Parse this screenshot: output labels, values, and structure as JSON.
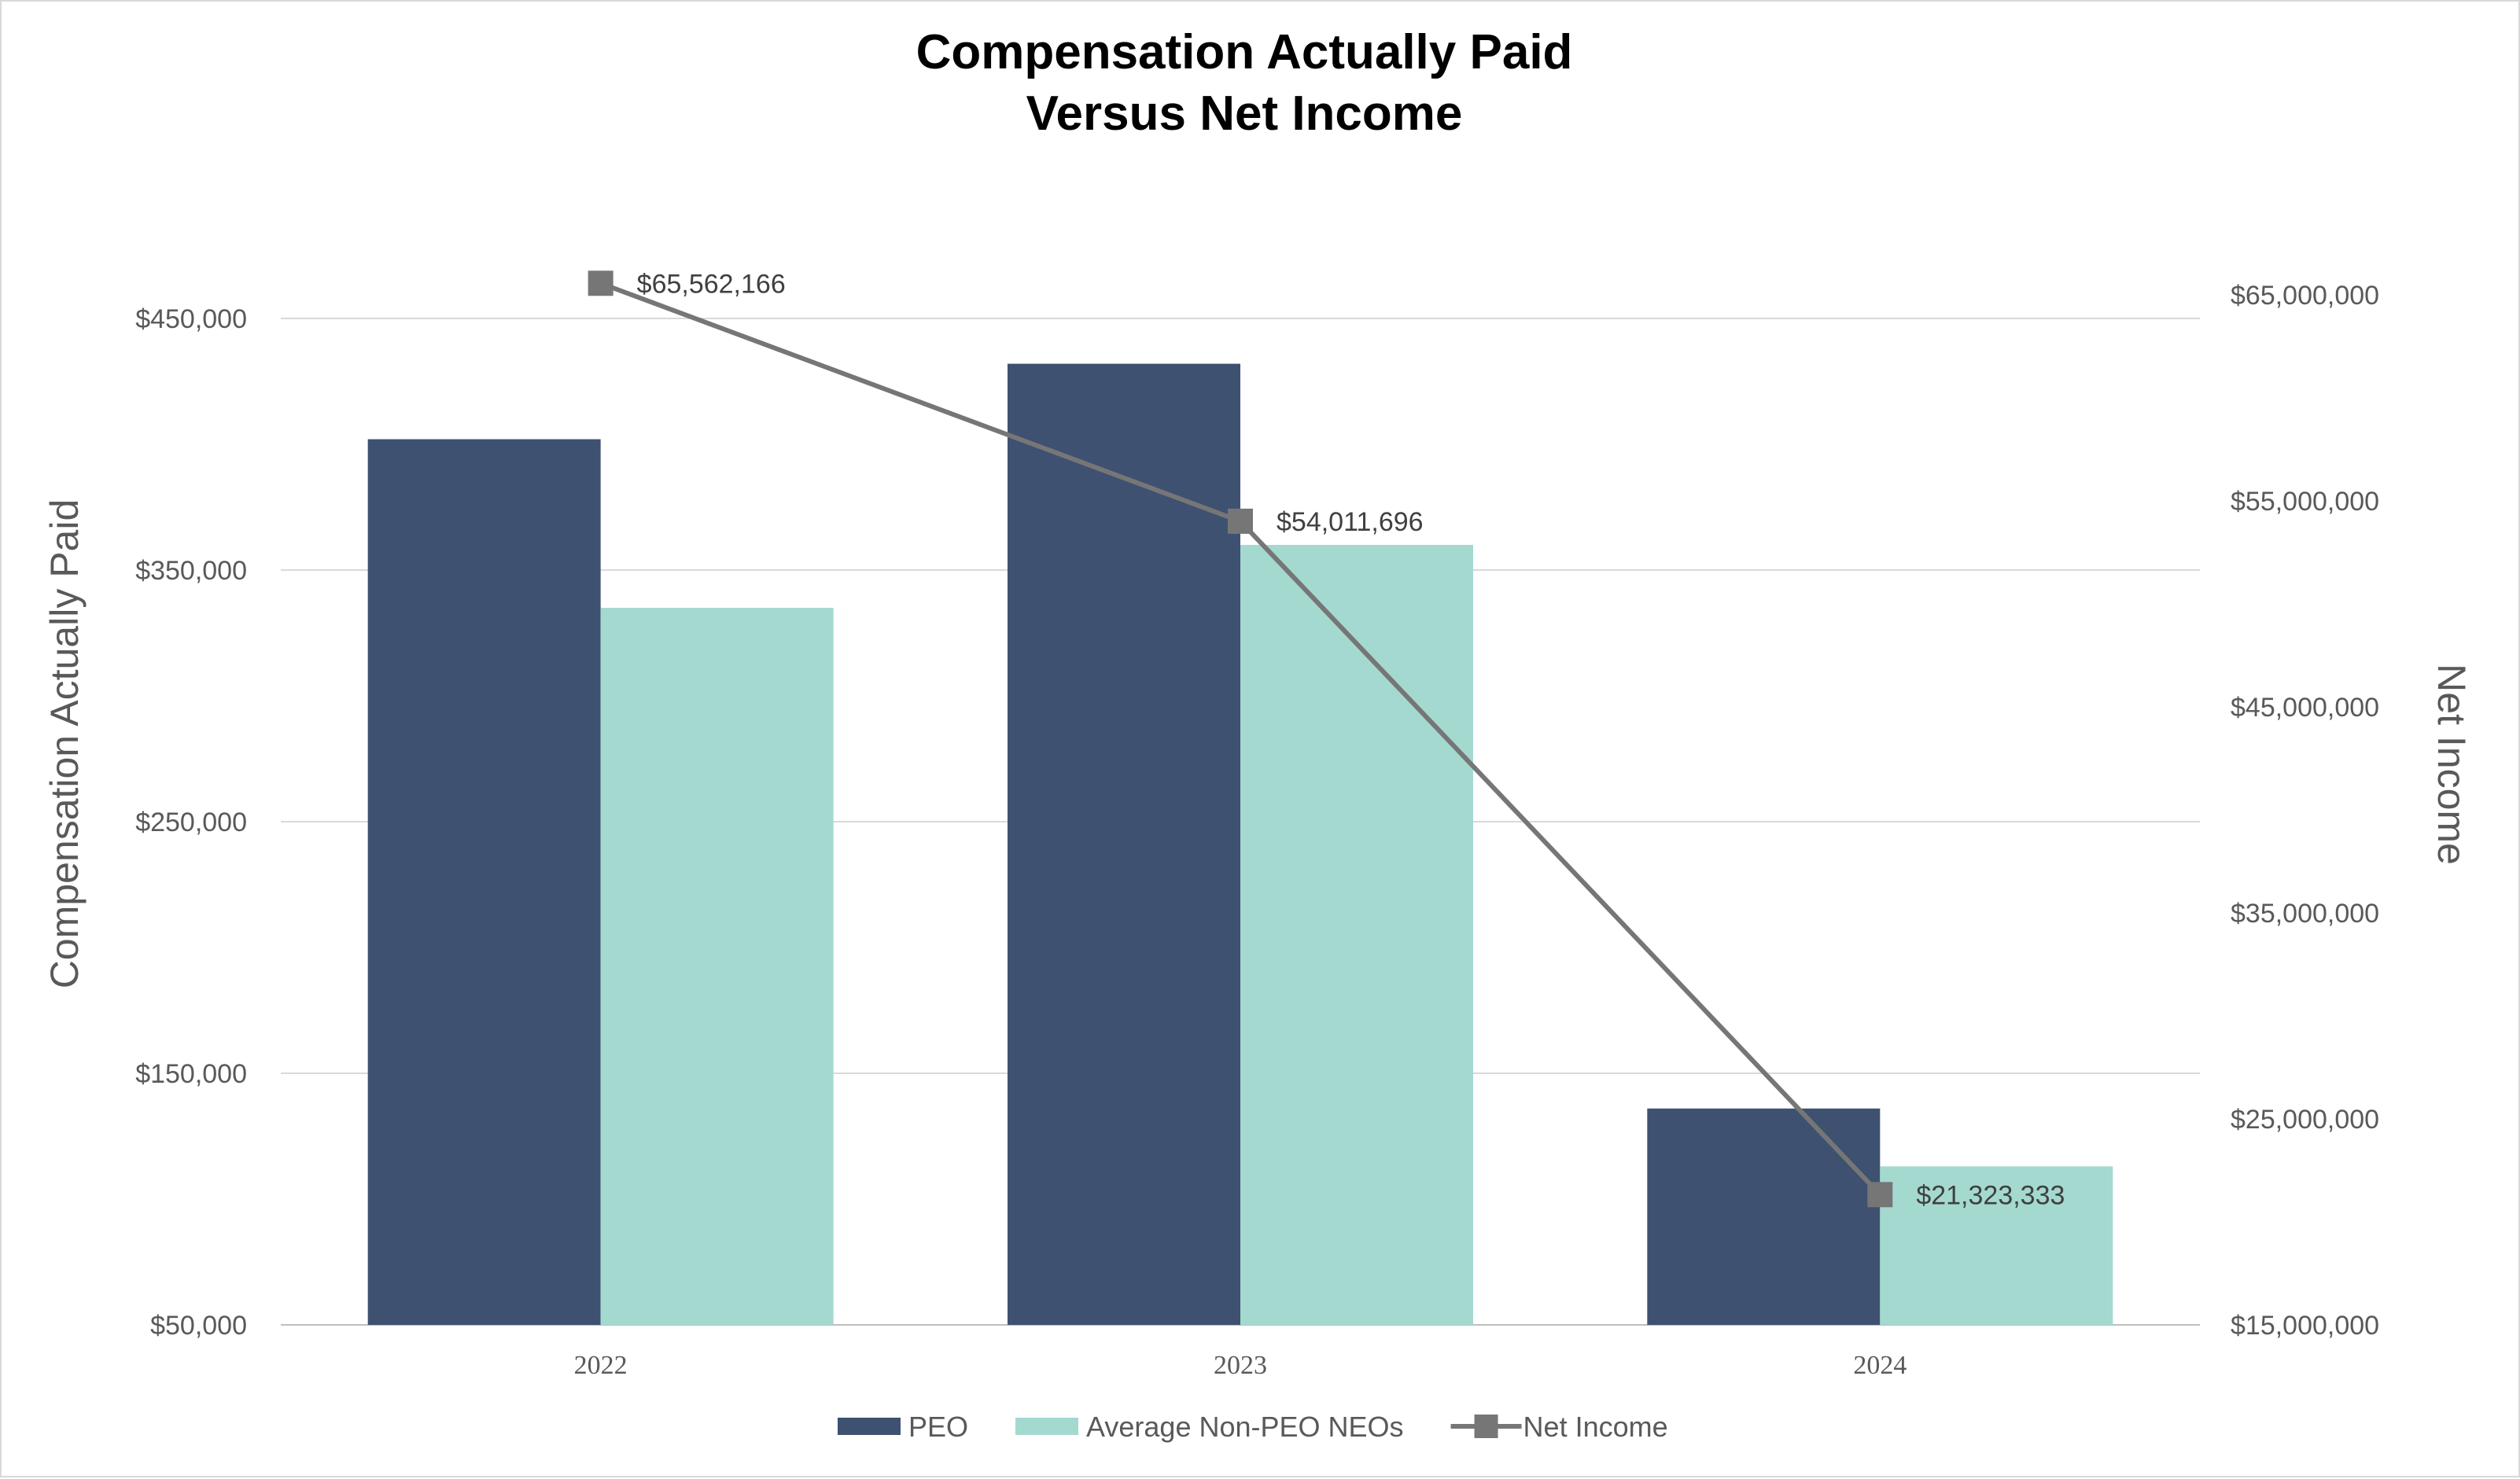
{
  "chart_data": {
    "type": "bar",
    "title": [
      "Compensation Actually Paid",
      "Versus Net Income"
    ],
    "categories": [
      "2022",
      "2023",
      "2024"
    ],
    "ylabel": "Compensation Actually Paid",
    "y2label": "Net Income",
    "ylim": [
      50000,
      450000
    ],
    "y_ticks": [
      {
        "value": 50000,
        "label": "$50,000"
      },
      {
        "value": 150000,
        "label": "$150,000"
      },
      {
        "value": 250000,
        "label": "$250,000"
      },
      {
        "value": 350000,
        "label": "$350,000"
      },
      {
        "value": 450000,
        "label": "$450,000"
      }
    ],
    "y2lim": [
      15000000,
      65000000
    ],
    "y2_ticks": [
      {
        "value": 15000000,
        "label": "$15,000,000"
      },
      {
        "value": 25000000,
        "label": "$25,000,000"
      },
      {
        "value": 35000000,
        "label": "$35,000,000"
      },
      {
        "value": 45000000,
        "label": "$45,000,000"
      },
      {
        "value": 55000000,
        "label": "$55,000,000"
      },
      {
        "value": 65000000,
        "label": "$65,000,000"
      }
    ],
    "grid": true,
    "legend_position": "bottom",
    "series": [
      {
        "name": "PEO",
        "type": "bar",
        "axis": "left",
        "color": "#3e5170",
        "values": [
          402000,
          432000,
          136000
        ]
      },
      {
        "name": "Average Non-PEO NEOs",
        "type": "bar",
        "axis": "left",
        "color": "#a4d9d0",
        "values": [
          335000,
          360000,
          113000
        ]
      },
      {
        "name": "Net Income",
        "type": "line",
        "axis": "right",
        "color": "#767676",
        "marker": "square",
        "values": [
          65562166,
          54011696,
          21323333
        ],
        "labels": [
          "$65,562,166",
          "$54,011,696",
          "$21,323,333"
        ]
      }
    ]
  }
}
